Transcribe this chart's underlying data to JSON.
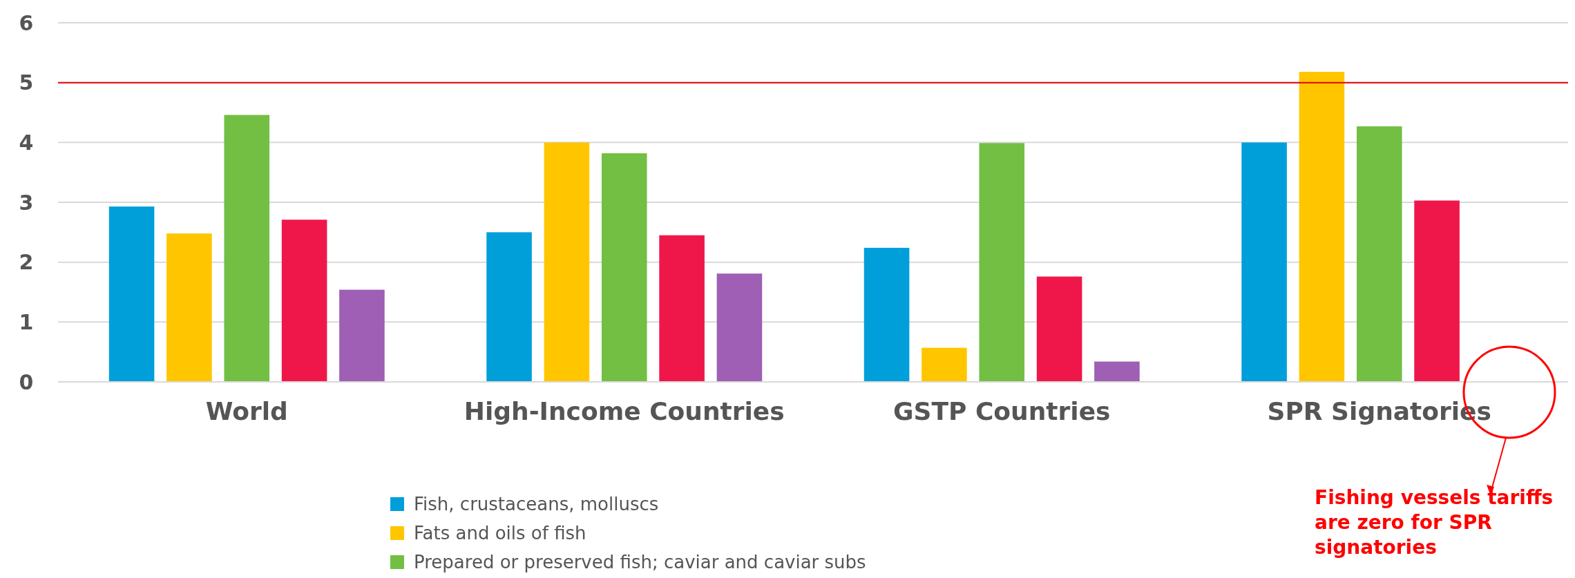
{
  "chart_data": {
    "type": "bar",
    "categories": [
      "World",
      "High-Income Countries",
      "GSTP Countries",
      "SPR Signatories"
    ],
    "series": [
      {
        "name": "Fish, crustaceans, molluscs",
        "color": "#009fda",
        "values": [
          2.93,
          2.5,
          2.24,
          4.0
        ]
      },
      {
        "name": "Fats and oils of fish",
        "color": "#ffc600",
        "values": [
          2.48,
          4.0,
          0.57,
          5.18
        ]
      },
      {
        "name": "Prepared or preserved fish; caviar and caviar subs",
        "color": "#72bf44",
        "values": [
          4.46,
          3.82,
          3.99,
          4.27
        ]
      },
      {
        "color": "#ef174a",
        "values": [
          2.71,
          2.45,
          1.76,
          3.03
        ]
      },
      {
        "color": "#9e5fb4",
        "values": [
          1.54,
          1.81,
          0.34,
          0
        ]
      }
    ],
    "ylim": [
      0,
      6
    ],
    "yticks": [
      0,
      1,
      2,
      3,
      4,
      5,
      6
    ],
    "grid": "y",
    "legend": "bottom",
    "ref_lines": [
      {
        "axis": "y",
        "value": 5,
        "color": "#e00000"
      }
    ],
    "annotations": [
      "Fishing vessels tariffs are zero for SPR signatories"
    ]
  }
}
